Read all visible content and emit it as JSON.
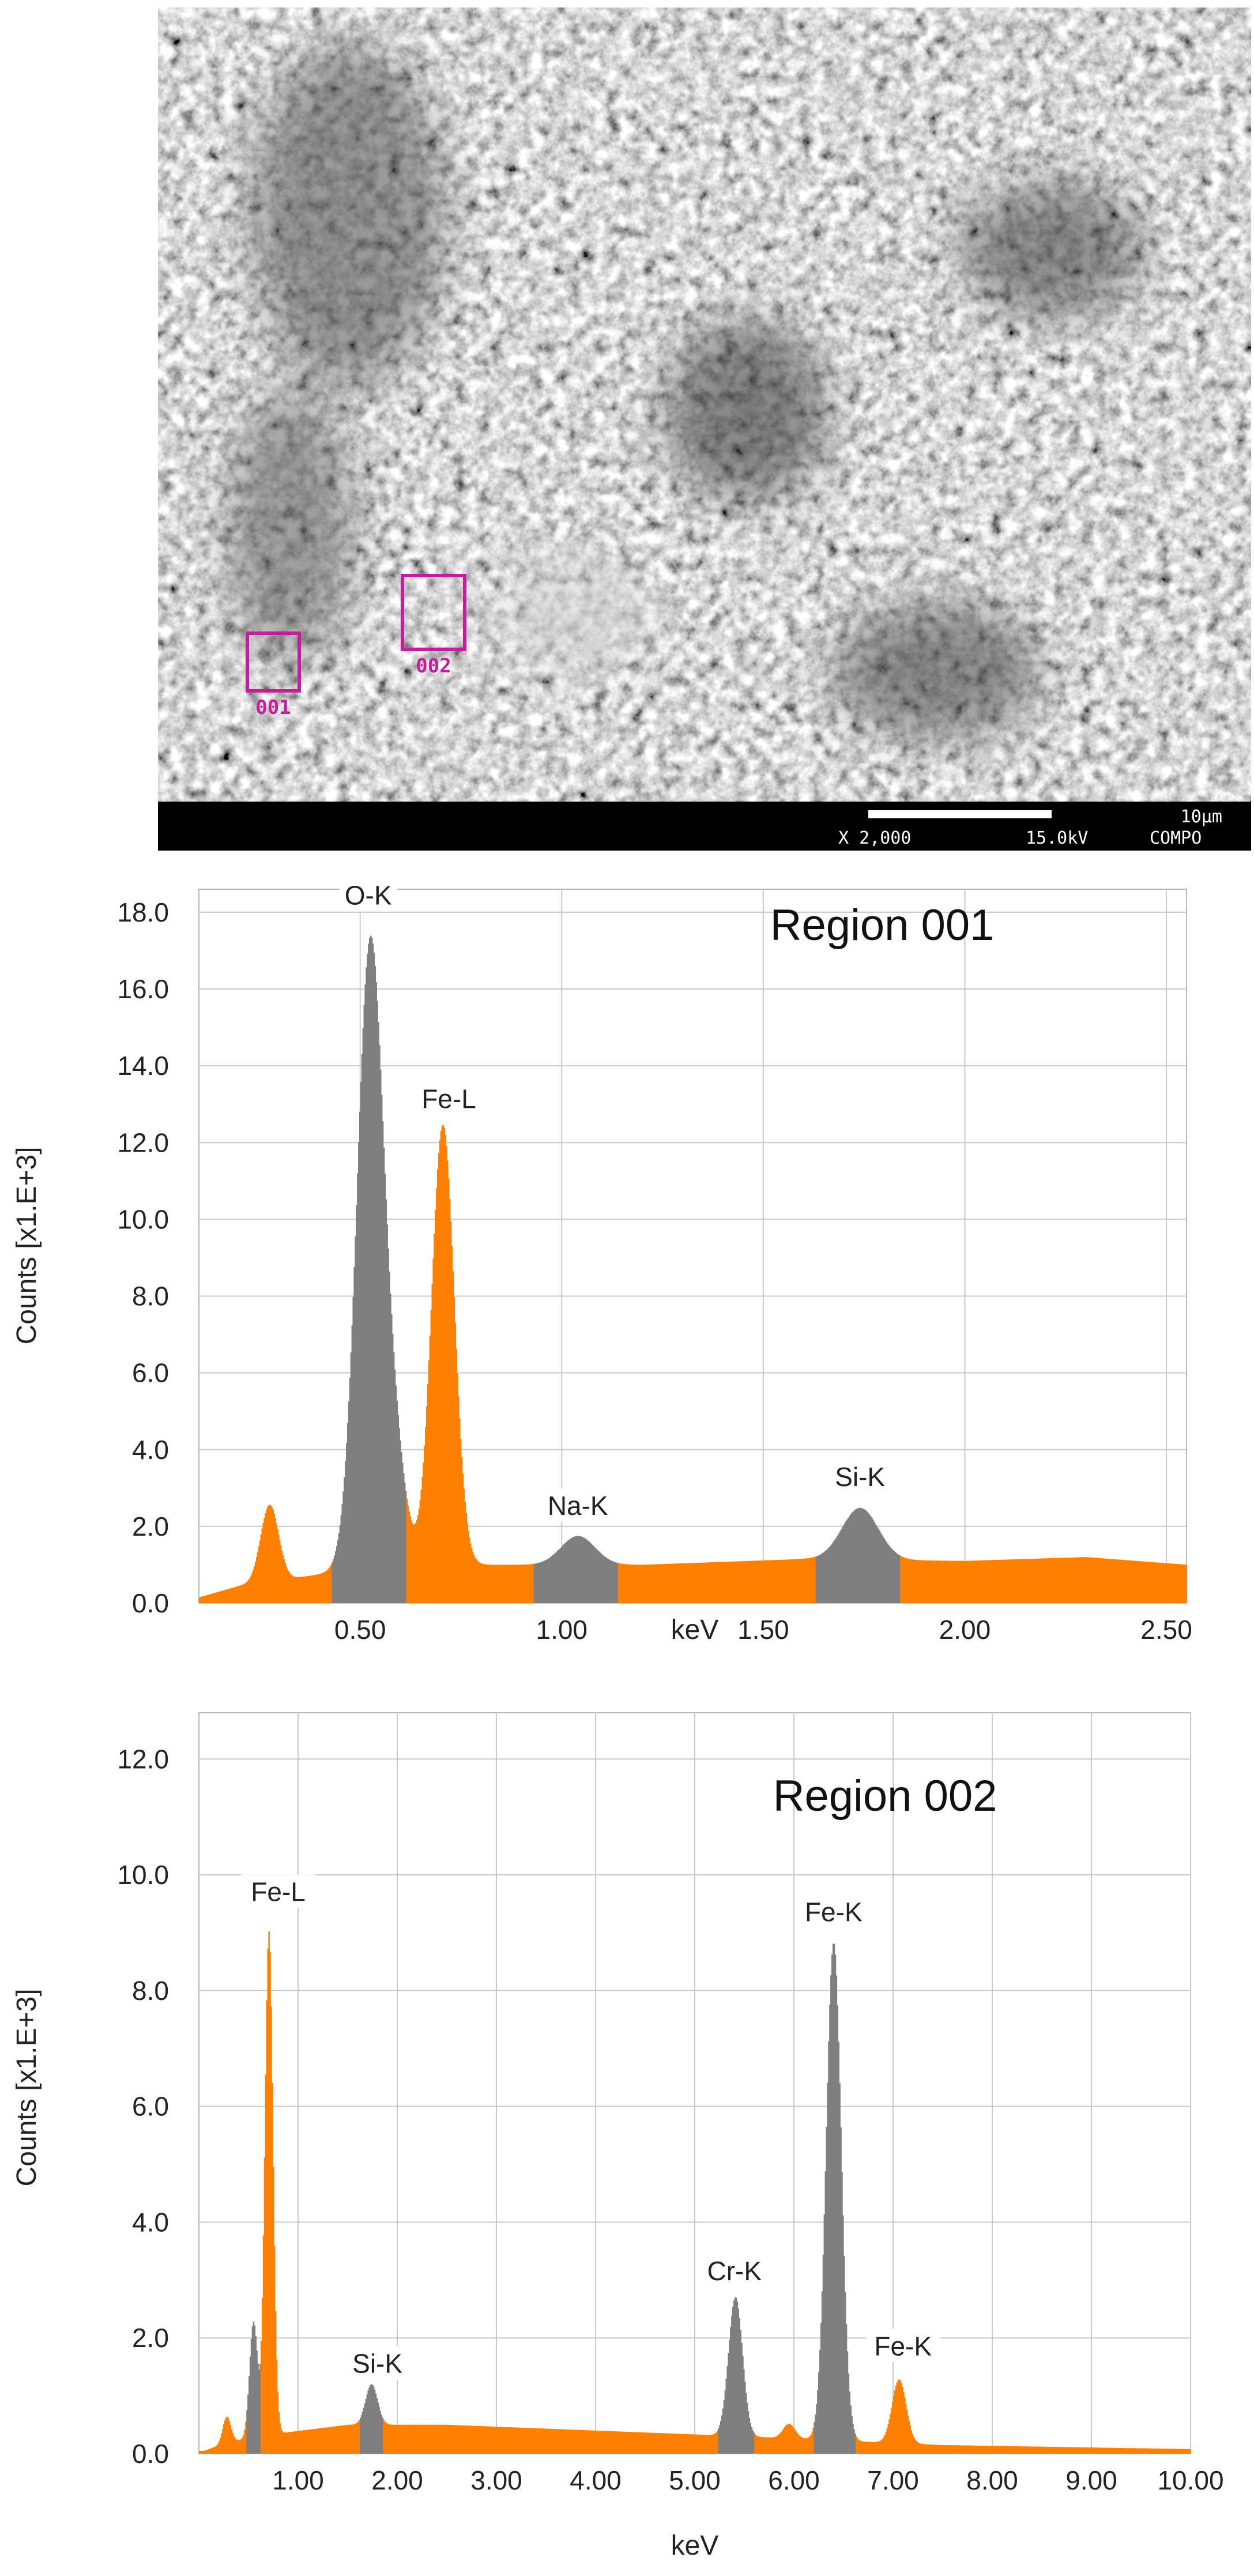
{
  "micrograph": {
    "regions": [
      {
        "label": "001"
      },
      {
        "label": "002"
      }
    ],
    "scalebar_label": "10µm",
    "info": {
      "magnification": "X 2,000",
      "voltage": "15.0kV",
      "mode": "COMPO"
    },
    "colors": {
      "region_box": "#c0209a",
      "info_bar": "#000000"
    }
  },
  "chart_data": [
    {
      "type": "area",
      "title": "Region 001",
      "xlabel": "keV",
      "ylabel": "Counts [x1.E+3]",
      "xlim": [
        0.1,
        2.55
      ],
      "ylim": [
        0,
        18.6
      ],
      "xticks": [
        "0.50",
        "1.00",
        "1.50",
        "2.00",
        "2.50"
      ],
      "xtick_values": [
        0.5,
        1.0,
        1.5,
        2.0,
        2.5
      ],
      "yticks": [
        "0.0",
        "2.0",
        "4.0",
        "6.0",
        "8.0",
        "10.0",
        "12.0",
        "14.0",
        "16.0",
        "18.0"
      ],
      "ytick_values": [
        0,
        2,
        4,
        6,
        8,
        10,
        12,
        14,
        16,
        18
      ],
      "grid": true,
      "spectrum": {
        "background": [
          [
            0.1,
            0.15
          ],
          [
            0.2,
            0.45
          ],
          [
            0.5,
            0.9
          ],
          [
            0.8,
            1.0
          ],
          [
            1.2,
            1.0
          ],
          [
            1.6,
            1.15
          ],
          [
            2.0,
            1.1
          ],
          [
            2.3,
            1.2
          ],
          [
            2.55,
            1.0
          ]
        ],
        "peaks": [
          {
            "center": 0.275,
            "height": 2.0,
            "sigma": 0.022
          },
          {
            "center": 0.525,
            "height": 16.3,
            "sigma": 0.033
          },
          {
            "center": 0.588,
            "height": 2.2,
            "sigma": 0.028
          },
          {
            "center": 0.705,
            "height": 11.5,
            "sigma": 0.028
          },
          {
            "center": 1.04,
            "height": 0.75,
            "sigma": 0.042
          },
          {
            "center": 1.74,
            "height": 1.35,
            "sigma": 0.045
          }
        ]
      },
      "series_colors": {
        "background": "#ff8000",
        "element_roi": "#7f7f7f"
      },
      "shaded_regions": [
        [
          0.43,
          0.615
        ],
        [
          0.93,
          1.14
        ],
        [
          1.63,
          1.84
        ]
      ],
      "peak_labels": [
        {
          "text": "O-K",
          "x": 0.52,
          "y": 18.2
        },
        {
          "text": "Fe-L",
          "x": 0.72,
          "y": 12.9
        },
        {
          "text": "Na-K",
          "x": 1.04,
          "y": 2.3
        },
        {
          "text": "Si-K",
          "x": 1.74,
          "y": 3.05
        }
      ]
    },
    {
      "type": "area",
      "title": "Region 002",
      "xlabel": "keV",
      "ylabel": "Counts [x1.E+3]",
      "xlim": [
        0,
        10
      ],
      "ylim": [
        0,
        12.8
      ],
      "xticks": [
        "1.00",
        "2.00",
        "3.00",
        "4.00",
        "5.00",
        "6.00",
        "7.00",
        "8.00",
        "9.00",
        "10.00"
      ],
      "xtick_values": [
        1,
        2,
        3,
        4,
        5,
        6,
        7,
        8,
        9,
        10
      ],
      "yticks": [
        "0.0",
        "2.0",
        "4.0",
        "6.0",
        "8.0",
        "10.0",
        "12.0"
      ],
      "ytick_values": [
        0,
        2,
        4,
        6,
        8,
        10,
        12
      ],
      "grid": true,
      "spectrum": {
        "background": [
          [
            0.05,
            0.05
          ],
          [
            0.3,
            0.2
          ],
          [
            0.8,
            0.35
          ],
          [
            1.5,
            0.5
          ],
          [
            2.5,
            0.5
          ],
          [
            4.0,
            0.4
          ],
          [
            5.5,
            0.3
          ],
          [
            7.5,
            0.15
          ],
          [
            10.0,
            0.08
          ]
        ],
        "peaks": [
          {
            "center": 0.28,
            "height": 0.45,
            "sigma": 0.04
          },
          {
            "center": 0.55,
            "height": 2.0,
            "sigma": 0.04
          },
          {
            "center": 0.705,
            "height": 8.7,
            "sigma": 0.04
          },
          {
            "center": 1.74,
            "height": 0.7,
            "sigma": 0.06
          },
          {
            "center": 5.41,
            "height": 2.4,
            "sigma": 0.07
          },
          {
            "center": 5.95,
            "height": 0.25,
            "sigma": 0.06
          },
          {
            "center": 6.4,
            "height": 8.6,
            "sigma": 0.075
          },
          {
            "center": 7.06,
            "height": 1.1,
            "sigma": 0.07
          }
        ]
      },
      "series_colors": {
        "background": "#ff8000",
        "element_roi": "#7f7f7f"
      },
      "shaded_regions": [
        [
          0.48,
          0.62
        ],
        [
          1.62,
          1.86
        ],
        [
          5.23,
          5.6
        ],
        [
          6.2,
          6.62
        ]
      ],
      "peak_labels": [
        {
          "text": "Fe-L",
          "x": 0.8,
          "y": 9.55
        },
        {
          "text": "Si-K",
          "x": 1.8,
          "y": 1.4
        },
        {
          "text": "Cr-K",
          "x": 5.4,
          "y": 3.0
        },
        {
          "text": "Fe-K",
          "x": 6.4,
          "y": 9.2
        },
        {
          "text": "Fe-K",
          "x": 7.1,
          "y": 1.7
        }
      ]
    }
  ]
}
